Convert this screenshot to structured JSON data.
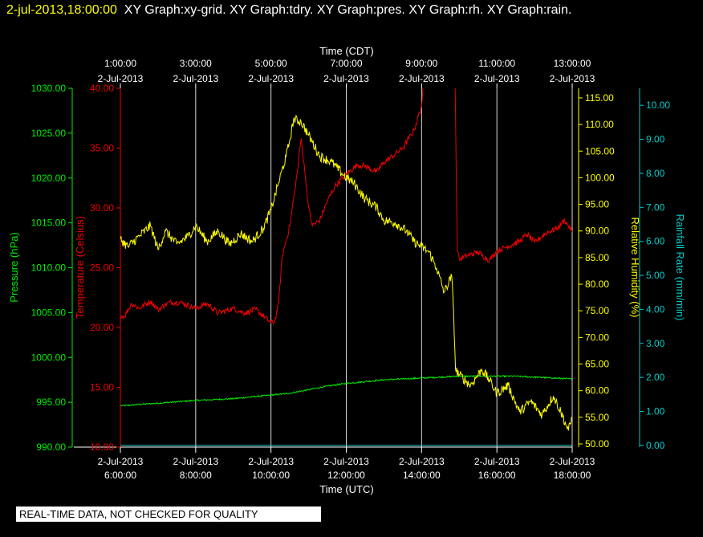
{
  "header": {
    "timestamp": "2-jul-2013,18:00:00",
    "graphs": "XY Graph:xy-grid.  XY Graph:tdry.  XY Graph:pres.  XY Graph:rh.  XY Graph:rain."
  },
  "qc_notice": "REAL-TIME DATA, NOT CHECKED FOR QUALITY",
  "colors": {
    "background": "#000000",
    "grid": "#ffffff",
    "pressure": "#00ee00",
    "temperature": "#ee0000",
    "humidity": "#ffff00",
    "rainfall": "#00cccc",
    "text": "#ffffff"
  },
  "chart_data": {
    "type": "line",
    "grid": true,
    "x_axes": {
      "top_title": "Time (CDT)",
      "bottom_title": "Time (UTC)",
      "top_ticks": [
        [
          "1:00:00",
          "2-Jul-2013"
        ],
        [
          "3:00:00",
          "2-Jul-2013"
        ],
        [
          "5:00:00",
          "2-Jul-2013"
        ],
        [
          "7:00:00",
          "2-Jul-2013"
        ],
        [
          "9:00:00",
          "2-Jul-2013"
        ],
        [
          "11:00:00",
          "2-Jul-2013"
        ],
        [
          "13:00:00",
          "2-Jul-2013"
        ]
      ],
      "bottom_ticks": [
        [
          "2-Jul-2013",
          "6:00:00"
        ],
        [
          "2-Jul-2013",
          "8:00:00"
        ],
        [
          "2-Jul-2013",
          "10:00:00"
        ],
        [
          "2-Jul-2013",
          "12:00:00"
        ],
        [
          "2-Jul-2013",
          "14:00:00"
        ],
        [
          "2-Jul-2013",
          "16:00:00"
        ],
        [
          "2-Jul-2013",
          "18:00:00"
        ]
      ],
      "xlim_utc_hours": [
        6,
        18
      ],
      "tick_hours_utc": [
        6,
        8,
        10,
        12,
        14,
        16,
        18
      ]
    },
    "y_axes": {
      "pressure": {
        "label": "Pressure (hPa)",
        "ylim": [
          990,
          1030
        ],
        "ticks": [
          "990.00",
          "995.00",
          "1000.00",
          "1005.00",
          "1010.00",
          "1015.00",
          "1020.00",
          "1025.00",
          "1030.00"
        ]
      },
      "temperature": {
        "label": "Temperature (Celsius)",
        "ylim": [
          10,
          40
        ],
        "ticks": [
          "10.00",
          "15.00",
          "20.00",
          "25.00",
          "30.00",
          "35.00",
          "40.00"
        ]
      },
      "humidity": {
        "label": "Relative Humidity (%)",
        "ylim": [
          49.4,
          116.8
        ],
        "ticks": [
          "50.00",
          "55.00",
          "60.00",
          "65.00",
          "70.00",
          "75.00",
          "80.00",
          "85.00",
          "90.00",
          "95.00",
          "100.00",
          "105.00",
          "110.00",
          "115.00"
        ]
      },
      "rainfall": {
        "label": "Rainfall Rate (mm/min)",
        "ylim": [
          -0.05,
          10.5
        ],
        "ticks": [
          "0.00",
          "1.00",
          "2.00",
          "3.00",
          "4.00",
          "5.00",
          "6.00",
          "7.00",
          "8.00",
          "9.00",
          "10.00"
        ]
      }
    },
    "series": [
      {
        "name": "Pressure",
        "axis": "pressure",
        "noise": 0.08,
        "x": [
          6.0,
          7.0,
          8.0,
          9.0,
          10.0,
          10.5,
          11.0,
          11.5,
          12.0,
          12.5,
          13.0,
          13.5,
          14.0,
          14.5,
          15.0,
          15.5,
          16.0,
          16.5,
          17.0,
          17.5,
          18.0
        ],
        "y": [
          994.6,
          994.9,
          995.2,
          995.4,
          995.8,
          996.0,
          996.4,
          996.8,
          997.1,
          997.3,
          997.5,
          997.6,
          997.7,
          997.8,
          997.9,
          997.9,
          997.9,
          997.9,
          997.8,
          997.7,
          997.6
        ]
      },
      {
        "name": "Temperature",
        "axis": "temperature",
        "noise": 0.25,
        "x": [
          6.0,
          6.1,
          6.3,
          6.5,
          6.8,
          7.0,
          7.3,
          7.6,
          8.0,
          8.3,
          8.6,
          9.0,
          9.3,
          9.6,
          10.0,
          10.1,
          10.2,
          10.3,
          10.5,
          10.7,
          10.8,
          10.9,
          11.0,
          11.1,
          11.3,
          11.5,
          11.7,
          11.9,
          12.0,
          12.3,
          12.5,
          12.8,
          13.0,
          13.3,
          13.5,
          13.8,
          14.0,
          14.05,
          14.06,
          14.88,
          14.89,
          14.92,
          14.95,
          15.0,
          15.2,
          15.5,
          15.8,
          16.0,
          16.3,
          16.6,
          16.8,
          17.0,
          17.3,
          17.6,
          17.8,
          18.0
        ],
        "y": [
          21.0,
          20.9,
          22.0,
          21.6,
          22.2,
          21.5,
          22.1,
          22.1,
          21.6,
          22.0,
          21.2,
          21.6,
          21.2,
          21.5,
          20.4,
          20.5,
          22.0,
          26.0,
          28.5,
          33.0,
          35.8,
          33.0,
          30.0,
          28.5,
          29.0,
          30.6,
          31.8,
          32.5,
          32.8,
          33.6,
          33.5,
          33.0,
          33.8,
          34.5,
          35.0,
          36.5,
          38.5,
          40.5,
          42.0,
          42.0,
          40.5,
          33.0,
          26.5,
          25.7,
          26.0,
          26.3,
          25.6,
          26.4,
          26.8,
          27.2,
          27.8,
          27.1,
          27.9,
          28.3,
          29.0,
          28.0
        ]
      },
      {
        "name": "Relative Humidity",
        "axis": "humidity",
        "noise": 0.9,
        "x": [
          6.0,
          6.2,
          6.5,
          6.8,
          7.0,
          7.2,
          7.5,
          7.8,
          8.0,
          8.3,
          8.6,
          8.9,
          9.2,
          9.5,
          9.8,
          10.0,
          10.2,
          10.4,
          10.5,
          10.6,
          10.8,
          11.0,
          11.3,
          11.6,
          12.0,
          12.2,
          12.5,
          12.8,
          13.0,
          13.3,
          13.6,
          13.8,
          14.0,
          14.2,
          14.4,
          14.6,
          14.8,
          14.85,
          14.9,
          15.0,
          15.3,
          15.6,
          15.8,
          16.0,
          16.3,
          16.6,
          16.9,
          17.2,
          17.5,
          17.7,
          17.9,
          18.0
        ],
        "y": [
          88.5,
          87.0,
          89.0,
          91.0,
          86.5,
          90.0,
          87.5,
          89.0,
          91.0,
          88.0,
          90.0,
          87.5,
          89.5,
          88.0,
          90.5,
          94.0,
          99.0,
          104.0,
          107.0,
          111.0,
          110.5,
          108.0,
          104.0,
          103.0,
          100.0,
          99.0,
          96.0,
          94.5,
          92.0,
          91.5,
          90.0,
          88.0,
          87.0,
          86.0,
          83.0,
          78.5,
          81.5,
          75.0,
          64.0,
          63.0,
          61.0,
          64.0,
          62.0,
          59.5,
          61.0,
          56.0,
          58.0,
          55.5,
          59.0,
          56.0,
          52.5,
          55.0
        ]
      },
      {
        "name": "Rainfall Rate",
        "axis": "rainfall",
        "noise": 0,
        "x": [
          6.0,
          18.0
        ],
        "y": [
          0.0,
          0.0
        ]
      }
    ]
  }
}
